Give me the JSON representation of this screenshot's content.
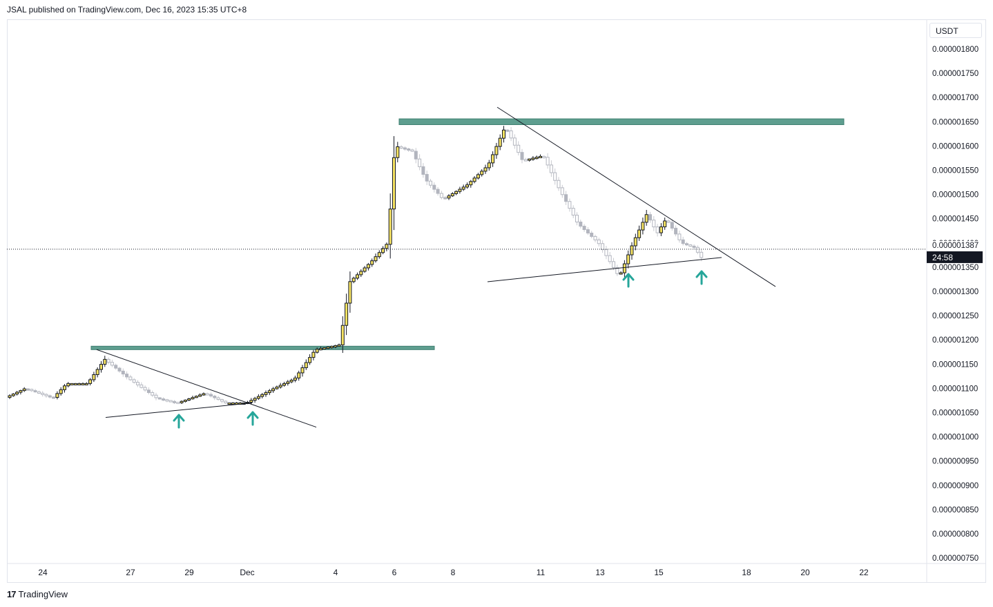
{
  "header": {
    "published_text": "JSAL published on TradingView.com, Dec 16, 2023 15:35 UTC+8"
  },
  "footer": {
    "brand": "TradingView",
    "logo_mark": "17"
  },
  "price_scale": {
    "currency": "USDT",
    "current_price_label": "0.000001387",
    "countdown_label": "24:58"
  },
  "colors": {
    "bull_fill": "#f7e463",
    "bear_fill": "#b2b5be",
    "zone_fill": "#5e9e8f",
    "arrow": "#26a69a",
    "line": "#131722"
  },
  "chart_data": {
    "type": "candlestick",
    "symbol_quote": "USDT",
    "y_ticks": [
      "0.000001800",
      "0.000001750",
      "0.000001700",
      "0.000001650",
      "0.000001600",
      "0.000001550",
      "0.000001500",
      "0.000001450",
      "0.000001400",
      "0.000001350",
      "0.000001300",
      "0.000001250",
      "0.000001200",
      "0.000001150",
      "0.000001100",
      "0.000001050",
      "0.000001000",
      "0.000000950",
      "0.000000900",
      "0.000000850",
      "0.000000800",
      "0.000000750"
    ],
    "ylim": [
      7.3e-07,
      1.83e-06
    ],
    "x_ticks": [
      "24",
      "27",
      "29",
      "Dec",
      "4",
      "6",
      "8",
      "11",
      "13",
      "15",
      "18",
      "20",
      "22"
    ],
    "current_price": 1.387e-06,
    "resistance_zones": [
      {
        "from_tick": "26",
        "to_tick": "7",
        "price_low": 1.18e-06,
        "price_high": 1.187e-06
      },
      {
        "from_tick": "6",
        "to_tick": "21",
        "price_low": 1.644e-06,
        "price_high": 1.656e-06
      }
    ],
    "trendlines": [
      {
        "name": "descending-1",
        "start_price": 1.18e-06,
        "end_price": 1.02e-06
      },
      {
        "name": "ascending-1",
        "start_price": 1.04e-06,
        "end_price": 1.07e-06
      },
      {
        "name": "descending-2",
        "start_price": 1.68e-06,
        "end_price": 1.31e-06
      },
      {
        "name": "ascending-2",
        "start_price": 1.32e-06,
        "end_price": 1.37e-06
      }
    ],
    "support_arrows_count": 4
  }
}
